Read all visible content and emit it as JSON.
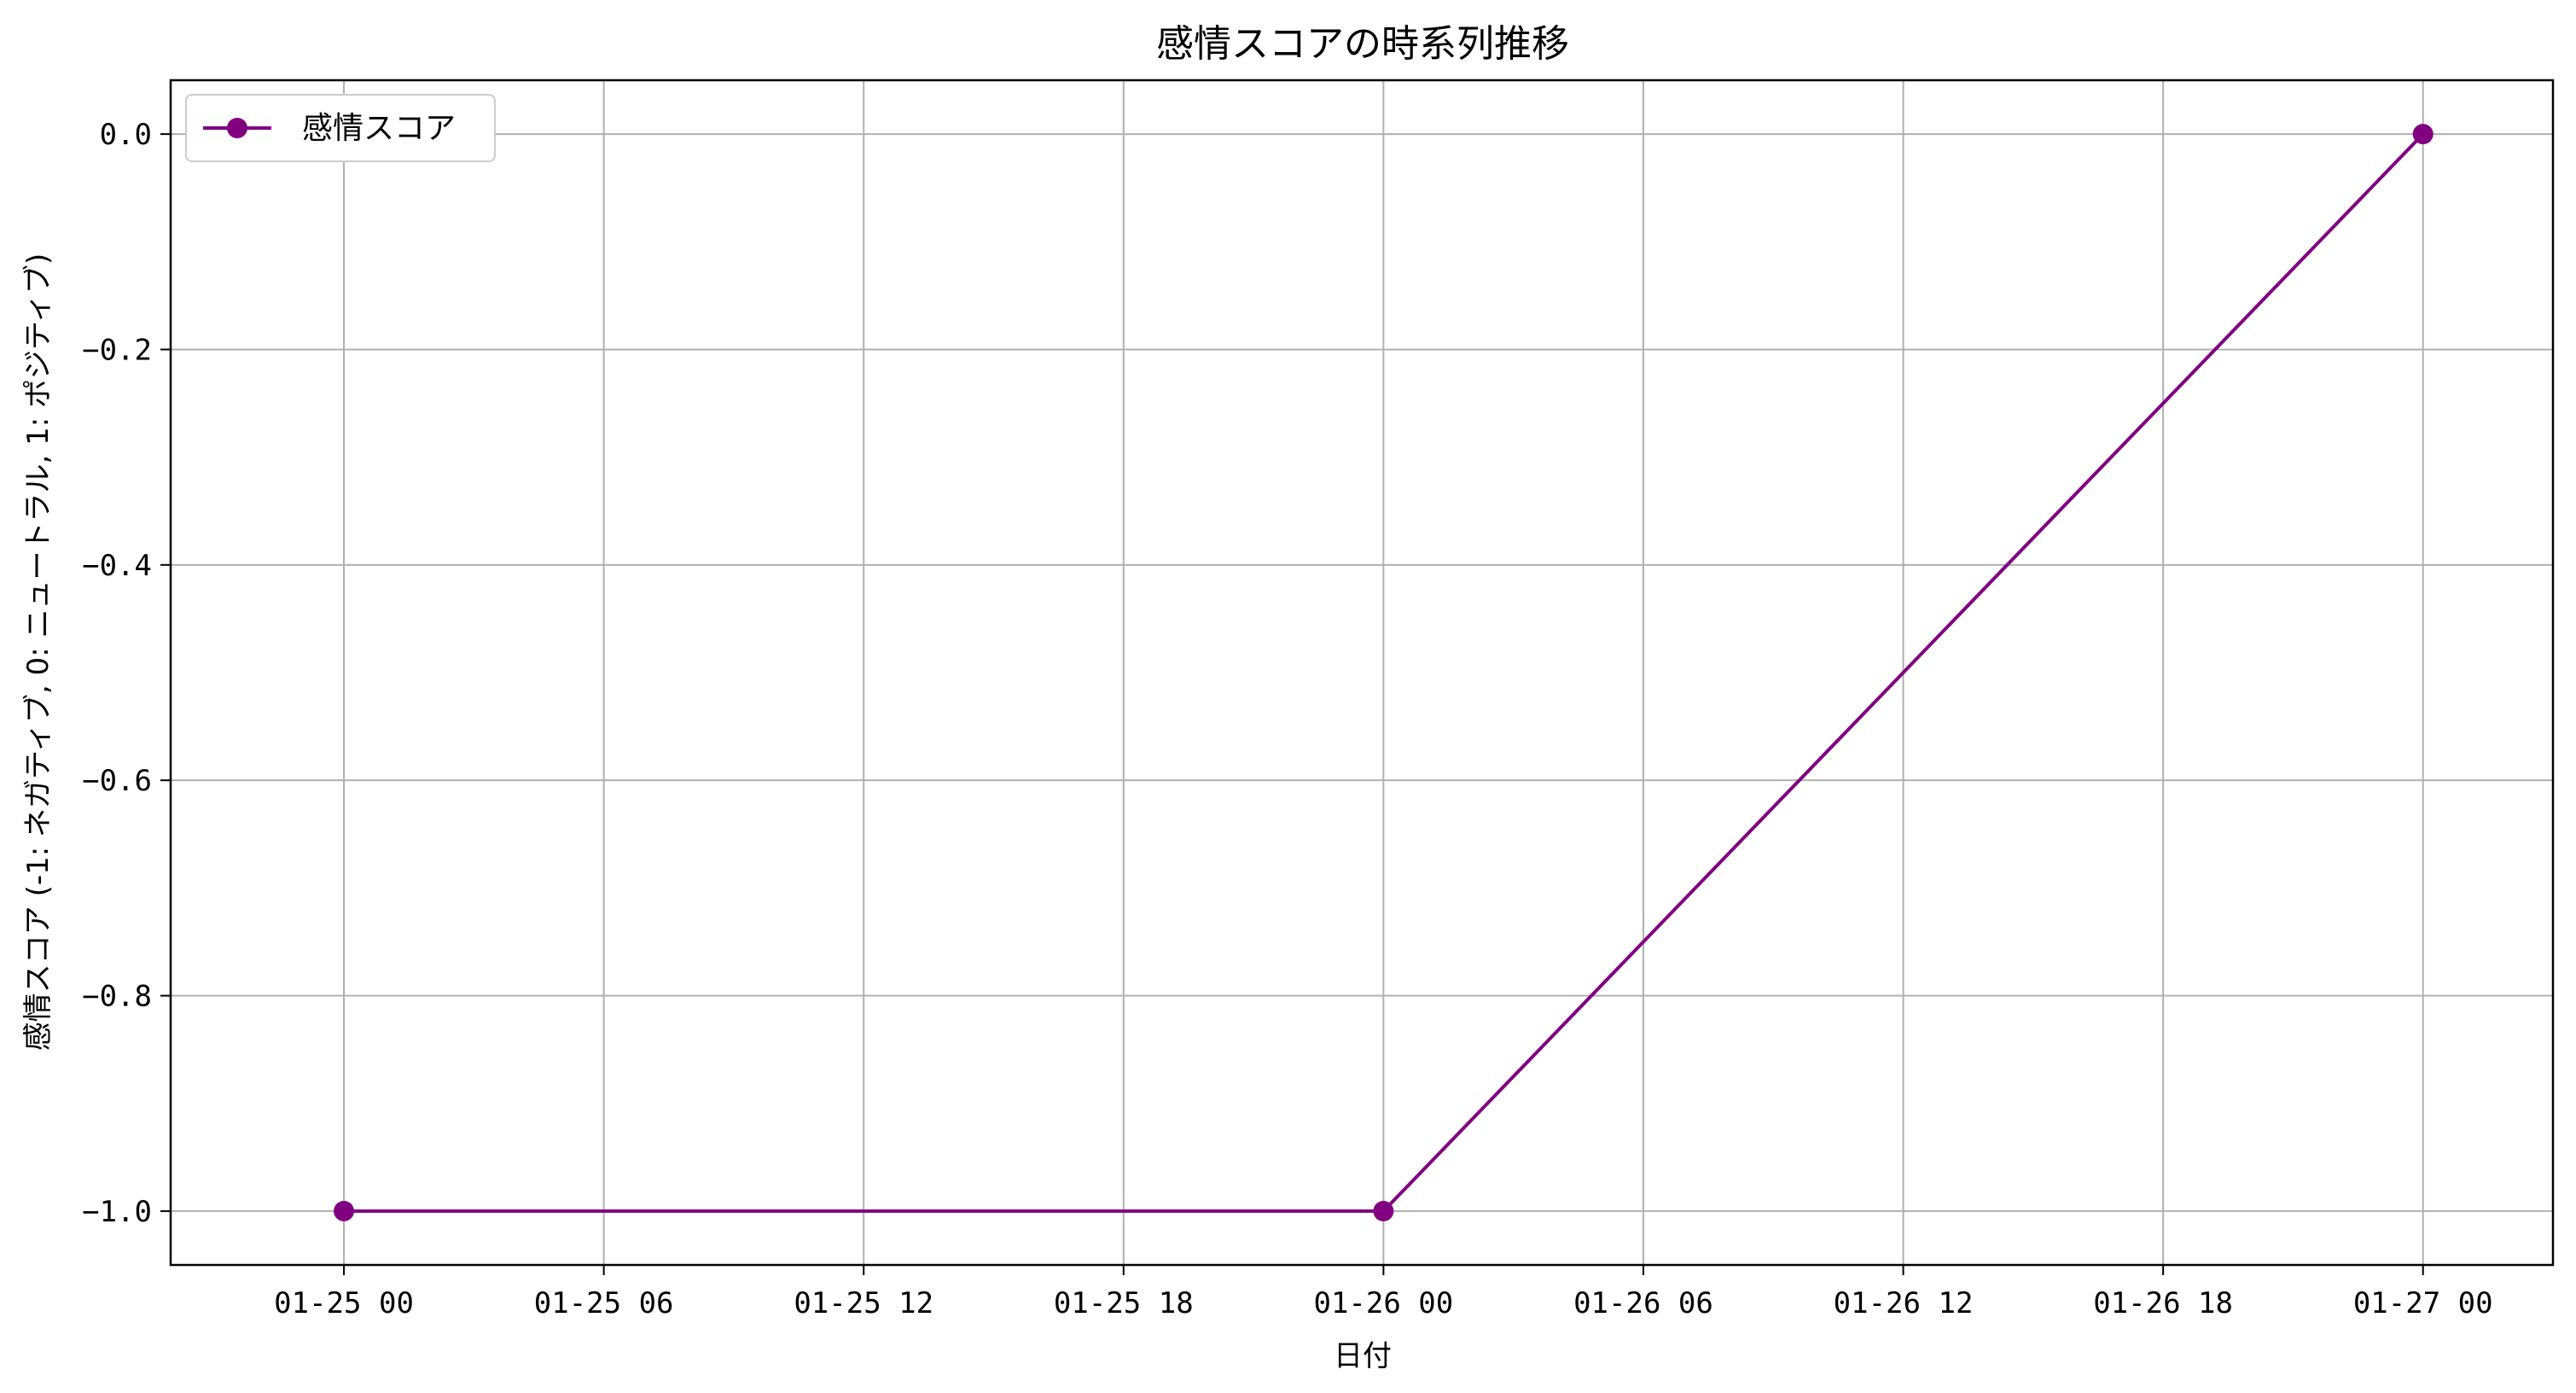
{
  "chart_data": {
    "type": "line",
    "title": "感情スコアの時系列推移",
    "xlabel": "日付",
    "ylabel": "感情スコア (-1: ネガティブ, 0: ニュートラル, 1: ポジティブ)",
    "x_ticks": [
      "01-25 00",
      "01-25 06",
      "01-25 12",
      "01-25 18",
      "01-26 00",
      "01-26 06",
      "01-26 12",
      "01-26 18",
      "01-27 00"
    ],
    "y_ticks": [
      "0.0",
      "−0.2",
      "−0.4",
      "−0.6",
      "−0.8",
      "−1.0"
    ],
    "xlim": [
      "01-24 20",
      "01-27 03"
    ],
    "ylim": [
      -1.05,
      0.05
    ],
    "grid": true,
    "legend_position": "top-left",
    "series": [
      {
        "name": "感情スコア",
        "color": "#800080",
        "marker": "circle",
        "x": [
          "01-25 00",
          "01-26 00",
          "01-27 00"
        ],
        "y": [
          -1.0,
          -1.0,
          0.0
        ]
      }
    ]
  }
}
